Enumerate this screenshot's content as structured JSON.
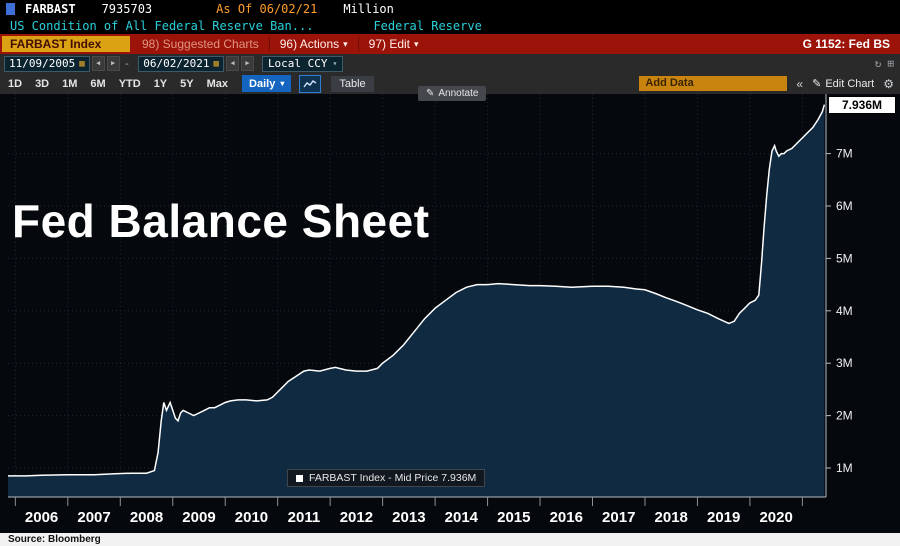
{
  "titlebar": {
    "ticker": "FARBAST",
    "value": "7935703",
    "as_of": "As Of 06/02/21",
    "unit": "Million",
    "description": "US Condition of All Federal Reserve Ban...",
    "source_label": "Federal Reserve"
  },
  "toolbar": {
    "security": "FARBAST Index",
    "suggested_charts": "98) Suggested Charts",
    "actions": "96) Actions",
    "edit": "97) Edit",
    "chart_id": "G 1152: Fed BS"
  },
  "datebar": {
    "start_date": "11/09/2005",
    "end_date": "06/02/2021",
    "currency": "Local CCY"
  },
  "periodbar": {
    "ranges": [
      "1D",
      "3D",
      "1M",
      "6M",
      "YTD",
      "1Y",
      "5Y",
      "Max"
    ],
    "frequency": "Daily",
    "table_label": "Table",
    "add_data": "Add Data",
    "edit_chart": "Edit Chart"
  },
  "chart": {
    "overlay_title": "Fed Balance Sheet",
    "annotate_label": "Annotate",
    "last_price_label": "7.936M",
    "legend": "FARBAST Index - Mid Price 7.936M"
  },
  "footer": {
    "source": "Source:  Bloomberg"
  },
  "icons": {
    "caret_down": "▾",
    "pencil": "✎",
    "calendar": "▦",
    "arrow_left": "◀",
    "arrow_right": "▶",
    "double_left": "«",
    "gear": "⚙",
    "refresh": "↻",
    "window": "⊞",
    "swatch": "■"
  },
  "colors": {
    "red_toolbar": "#9c130a",
    "amber_field": "#dba313",
    "accent_blue": "#1465c0",
    "cyan_text": "#2ad0da",
    "orange_text": "#ff9d2e",
    "chart_bg": "#05080d",
    "chart_fill": "#102a42",
    "chart_line": "#ffffff"
  },
  "chart_data": {
    "type": "area",
    "title": "Fed Balance Sheet",
    "series_name": "FARBAST Index - Mid Price",
    "last_value": 7.936,
    "unit": "M",
    "x_range": [
      2005.86,
      2021.45
    ],
    "ylim": [
      0.45,
      8.1
    ],
    "y_ticks": [
      1,
      2,
      3,
      4,
      5,
      6,
      7
    ],
    "y_tick_labels": [
      "1M",
      "2M",
      "3M",
      "4M",
      "5M",
      "6M",
      "7M"
    ],
    "x_tick_years": [
      2006,
      2007,
      2008,
      2009,
      2010,
      2011,
      2012,
      2013,
      2014,
      2015,
      2016,
      2017,
      2018,
      2019,
      2020
    ],
    "grid": true,
    "legend_position": "bottom-center",
    "points": [
      [
        2005.86,
        0.85
      ],
      [
        2006.2,
        0.85
      ],
      [
        2006.5,
        0.86
      ],
      [
        2007.0,
        0.87
      ],
      [
        2007.5,
        0.87
      ],
      [
        2007.9,
        0.89
      ],
      [
        2008.2,
        0.9
      ],
      [
        2008.5,
        0.9
      ],
      [
        2008.65,
        0.95
      ],
      [
        2008.72,
        1.3
      ],
      [
        2008.78,
        1.9
      ],
      [
        2008.83,
        2.25
      ],
      [
        2008.88,
        2.1
      ],
      [
        2008.95,
        2.25
      ],
      [
        2009.0,
        2.1
      ],
      [
        2009.05,
        1.95
      ],
      [
        2009.1,
        1.9
      ],
      [
        2009.15,
        2.05
      ],
      [
        2009.2,
        2.1
      ],
      [
        2009.3,
        2.05
      ],
      [
        2009.4,
        2.0
      ],
      [
        2009.5,
        2.05
      ],
      [
        2009.6,
        2.1
      ],
      [
        2009.7,
        2.15
      ],
      [
        2009.8,
        2.15
      ],
      [
        2009.9,
        2.2
      ],
      [
        2010.0,
        2.25
      ],
      [
        2010.1,
        2.28
      ],
      [
        2010.25,
        2.3
      ],
      [
        2010.4,
        2.3
      ],
      [
        2010.6,
        2.28
      ],
      [
        2010.8,
        2.3
      ],
      [
        2010.9,
        2.35
      ],
      [
        2011.0,
        2.45
      ],
      [
        2011.1,
        2.55
      ],
      [
        2011.2,
        2.65
      ],
      [
        2011.35,
        2.75
      ],
      [
        2011.5,
        2.85
      ],
      [
        2011.6,
        2.87
      ],
      [
        2011.8,
        2.85
      ],
      [
        2012.0,
        2.9
      ],
      [
        2012.1,
        2.92
      ],
      [
        2012.3,
        2.87
      ],
      [
        2012.5,
        2.85
      ],
      [
        2012.7,
        2.85
      ],
      [
        2012.9,
        2.9
      ],
      [
        2013.0,
        3.0
      ],
      [
        2013.2,
        3.15
      ],
      [
        2013.4,
        3.35
      ],
      [
        2013.6,
        3.6
      ],
      [
        2013.8,
        3.85
      ],
      [
        2014.0,
        4.05
      ],
      [
        2014.2,
        4.2
      ],
      [
        2014.4,
        4.35
      ],
      [
        2014.6,
        4.45
      ],
      [
        2014.8,
        4.5
      ],
      [
        2015.0,
        4.5
      ],
      [
        2015.2,
        4.52
      ],
      [
        2015.5,
        4.5
      ],
      [
        2015.8,
        4.48
      ],
      [
        2016.0,
        4.48
      ],
      [
        2016.3,
        4.47
      ],
      [
        2016.6,
        4.45
      ],
      [
        2017.0,
        4.47
      ],
      [
        2017.3,
        4.47
      ],
      [
        2017.6,
        4.45
      ],
      [
        2017.8,
        4.42
      ],
      [
        2018.0,
        4.4
      ],
      [
        2018.2,
        4.33
      ],
      [
        2018.4,
        4.25
      ],
      [
        2018.6,
        4.18
      ],
      [
        2018.8,
        4.1
      ],
      [
        2019.0,
        4.02
      ],
      [
        2019.2,
        3.95
      ],
      [
        2019.4,
        3.85
      ],
      [
        2019.6,
        3.76
      ],
      [
        2019.7,
        3.8
      ],
      [
        2019.8,
        3.95
      ],
      [
        2019.9,
        4.05
      ],
      [
        2020.0,
        4.15
      ],
      [
        2020.1,
        4.2
      ],
      [
        2020.17,
        4.3
      ],
      [
        2020.22,
        4.9
      ],
      [
        2020.27,
        5.6
      ],
      [
        2020.32,
        6.2
      ],
      [
        2020.37,
        6.7
      ],
      [
        2020.42,
        7.05
      ],
      [
        2020.47,
        7.15
      ],
      [
        2020.5,
        7.05
      ],
      [
        2020.55,
        6.95
      ],
      [
        2020.6,
        7.0
      ],
      [
        2020.65,
        7.0
      ],
      [
        2020.7,
        7.05
      ],
      [
        2020.8,
        7.1
      ],
      [
        2020.9,
        7.2
      ],
      [
        2021.0,
        7.3
      ],
      [
        2021.1,
        7.4
      ],
      [
        2021.2,
        7.5
      ],
      [
        2021.3,
        7.65
      ],
      [
        2021.38,
        7.8
      ],
      [
        2021.42,
        7.936
      ]
    ]
  }
}
